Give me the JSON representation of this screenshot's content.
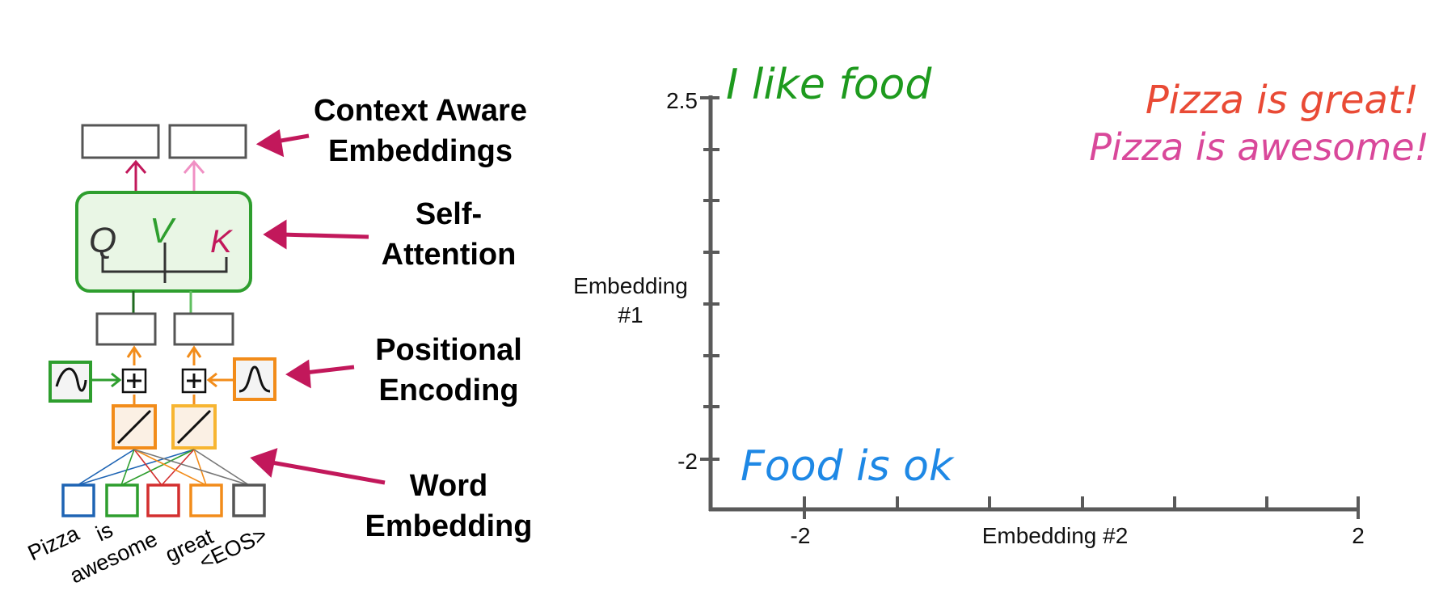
{
  "diagram": {
    "labels": {
      "context_aware": "Context Aware Embeddings",
      "self_attention": "Self-Attention",
      "positional_encoding": "Positional Encoding",
      "word_embedding": "Word Embedding"
    },
    "qkv": {
      "q": "Q",
      "v": "V",
      "k": "K"
    },
    "tokens": [
      "Pizza",
      "is",
      "awesome",
      "great",
      "<EOS>"
    ],
    "colors": {
      "arrow": "#c2185b",
      "green": "#2e9e2e",
      "orange": "#f28c1a",
      "blue": "#1e64b4",
      "red": "#d32f2f",
      "pink": "#e87ab4",
      "gray": "#555555"
    }
  },
  "plot": {
    "ylabel": "Embedding #1",
    "xlabel": "Embedding #2",
    "y_ticks": [
      "2.5",
      "-2"
    ],
    "x_ticks": [
      "-2",
      "2"
    ],
    "phrases": [
      {
        "text": "I like food",
        "color": "#1e9a1e"
      },
      {
        "text": "Pizza is great!",
        "color": "#e94a35"
      },
      {
        "text": "Pizza is awesome!",
        "color": "#d9489a"
      },
      {
        "text": "Food is ok",
        "color": "#1e88e5"
      }
    ]
  }
}
